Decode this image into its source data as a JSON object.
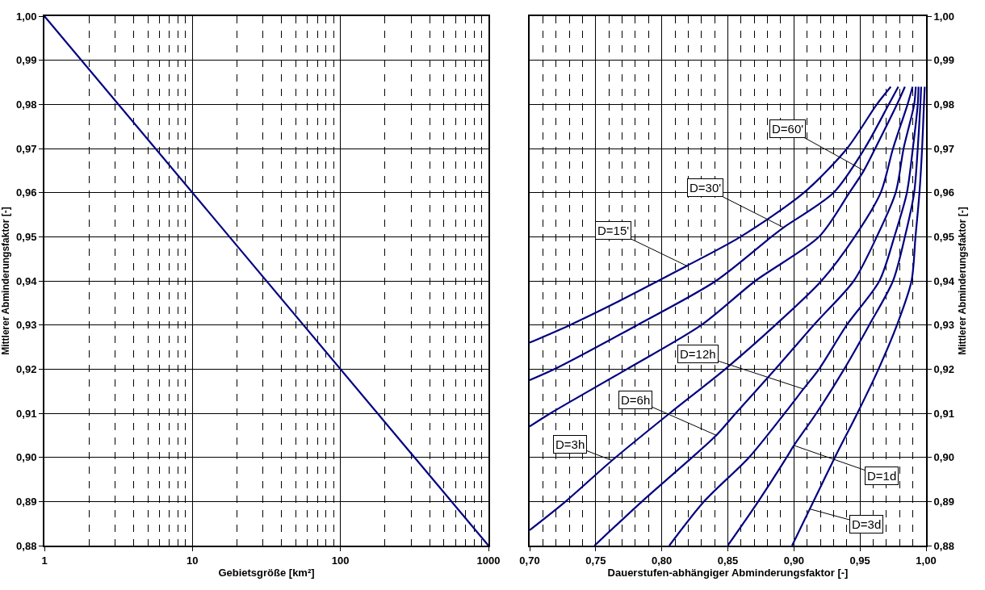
{
  "chart_data": [
    {
      "type": "line",
      "xlabel": "Gebietsgröße [km²]",
      "ylabel": "Mittlerer Abminderungsfaktor [-]",
      "log": "x",
      "grid": true,
      "color": "#000080",
      "x": [
        1,
        1000
      ],
      "values": [
        1.0,
        0.88
      ],
      "xlim": [
        1,
        1000
      ],
      "xticks": [
        {
          "value": 1,
          "label": "1"
        },
        {
          "value": 2,
          "label": null
        },
        {
          "value": 3,
          "label": null
        },
        {
          "value": 4,
          "label": null
        },
        {
          "value": 5,
          "label": null
        },
        {
          "value": 6,
          "label": null
        },
        {
          "value": 7,
          "label": null
        },
        {
          "value": 8,
          "label": null
        },
        {
          "value": 9,
          "label": null
        },
        {
          "value": 10,
          "label": "10"
        },
        {
          "value": 20,
          "label": null
        },
        {
          "value": 30,
          "label": null
        },
        {
          "value": 40,
          "label": null
        },
        {
          "value": 50,
          "label": null
        },
        {
          "value": 60,
          "label": null
        },
        {
          "value": 70,
          "label": null
        },
        {
          "value": 80,
          "label": null
        },
        {
          "value": 90,
          "label": null
        },
        {
          "value": 100,
          "label": "100"
        },
        {
          "value": 200,
          "label": null
        },
        {
          "value": 300,
          "label": null
        },
        {
          "value": 400,
          "label": null
        },
        {
          "value": 500,
          "label": null
        },
        {
          "value": 600,
          "label": null
        },
        {
          "value": 700,
          "label": null
        },
        {
          "value": 800,
          "label": null
        },
        {
          "value": 900,
          "label": null
        },
        {
          "value": 1000,
          "label": "1000"
        }
      ],
      "ylim": [
        0.88,
        1.0
      ],
      "yticks": [
        {
          "value": 0.88,
          "label": "0,88"
        },
        {
          "value": 0.89,
          "label": "0,89"
        },
        {
          "value": 0.9,
          "label": "0,90"
        },
        {
          "value": 0.91,
          "label": "0,91"
        },
        {
          "value": 0.92,
          "label": "0,92"
        },
        {
          "value": 0.93,
          "label": "0,93"
        },
        {
          "value": 0.94,
          "label": "0,94"
        },
        {
          "value": 0.95,
          "label": "0,95"
        },
        {
          "value": 0.96,
          "label": "0,96"
        },
        {
          "value": 0.97,
          "label": "0,97"
        },
        {
          "value": 0.98,
          "label": "0,98"
        },
        {
          "value": 0.99,
          "label": "0,99"
        },
        {
          "value": 1.0,
          "label": "1,00"
        }
      ]
    },
    {
      "type": "line",
      "xlabel": "Dauerstufen-abhängiger Abminderungsfaktor [-]",
      "ylabel": "Mittlerer Abminderungsfaktor [-]",
      "grid": true,
      "xlim": [
        0.7,
        1.0
      ],
      "xticks": [
        {
          "value": 0.7,
          "label": "0,70"
        },
        {
          "value": 0.71,
          "label": null
        },
        {
          "value": 0.72,
          "label": null
        },
        {
          "value": 0.73,
          "label": null
        },
        {
          "value": 0.74,
          "label": null
        },
        {
          "value": 0.75,
          "label": "0,75"
        },
        {
          "value": 0.76,
          "label": null
        },
        {
          "value": 0.77,
          "label": null
        },
        {
          "value": 0.78,
          "label": null
        },
        {
          "value": 0.79,
          "label": null
        },
        {
          "value": 0.8,
          "label": "0,80"
        },
        {
          "value": 0.81,
          "label": null
        },
        {
          "value": 0.82,
          "label": null
        },
        {
          "value": 0.83,
          "label": null
        },
        {
          "value": 0.84,
          "label": null
        },
        {
          "value": 0.85,
          "label": "0,85"
        },
        {
          "value": 0.86,
          "label": null
        },
        {
          "value": 0.87,
          "label": null
        },
        {
          "value": 0.88,
          "label": null
        },
        {
          "value": 0.89,
          "label": null
        },
        {
          "value": 0.9,
          "label": "0,90"
        },
        {
          "value": 0.91,
          "label": null
        },
        {
          "value": 0.92,
          "label": null
        },
        {
          "value": 0.93,
          "label": null
        },
        {
          "value": 0.94,
          "label": null
        },
        {
          "value": 0.95,
          "label": "0,95"
        },
        {
          "value": 0.96,
          "label": null
        },
        {
          "value": 0.97,
          "label": null
        },
        {
          "value": 0.98,
          "label": null
        },
        {
          "value": 0.99,
          "label": null
        },
        {
          "value": 1.0,
          "label": "1,00"
        }
      ],
      "ylim": [
        0.88,
        1.0
      ],
      "yticks": [
        {
          "value": 0.88,
          "label": "0,88"
        },
        {
          "value": 0.89,
          "label": "0,89"
        },
        {
          "value": 0.9,
          "label": "0,90"
        },
        {
          "value": 0.91,
          "label": "0,91"
        },
        {
          "value": 0.92,
          "label": "0,92"
        },
        {
          "value": 0.93,
          "label": "0,93"
        },
        {
          "value": 0.94,
          "label": "0,94"
        },
        {
          "value": 0.95,
          "label": "0,95"
        },
        {
          "value": 0.96,
          "label": "0,96"
        },
        {
          "value": 0.97,
          "label": "0,97"
        },
        {
          "value": 0.98,
          "label": "0,98"
        },
        {
          "value": 0.99,
          "label": "0,99"
        },
        {
          "value": 1.0,
          "label": "1,00"
        }
      ],
      "series": [
        {
          "color": "#000080",
          "x": [
            0.7,
            0.7306,
            0.765,
            0.7973,
            0.8189,
            0.8596,
            0.9076,
            0.9402,
            0.9627,
            0.9733
          ],
          "values": [
            0.926,
            0.93,
            0.935,
            0.94,
            0.9434,
            0.95,
            0.96,
            0.97,
            0.98,
            0.984
          ]
        },
        {
          "color": "#000080",
          "x": [
            0.7,
            0.7188,
            0.7815,
            0.841,
            0.883,
            0.8922,
            0.93,
            0.9535,
            0.9718,
            0.979
          ],
          "values": [
            0.9175,
            0.92,
            0.93,
            0.94,
            0.95,
            0.9521,
            0.96,
            0.97,
            0.98,
            0.984
          ]
        },
        {
          "color": "#000080",
          "x": [
            0.7,
            0.7158,
            0.7736,
            0.83,
            0.8708,
            0.919,
            0.942,
            0.9529,
            0.9615,
            0.978,
            0.984
          ],
          "values": [
            0.907,
            0.91,
            0.92,
            0.93,
            0.94,
            0.95,
            0.96,
            0.965,
            0.97,
            0.98,
            0.984
          ]
        },
        {
          "color": "#000080",
          "x": [
            0.7,
            0.7272,
            0.7623,
            0.806,
            0.848,
            0.886,
            0.9208,
            0.946,
            0.9657,
            0.975,
            0.986,
            0.9898
          ],
          "values": [
            0.8835,
            0.89,
            0.8993,
            0.91,
            0.92,
            0.93,
            0.94,
            0.95,
            0.96,
            0.97,
            0.98,
            0.984
          ]
        },
        {
          "color": "#000080",
          "x": [
            0.7491,
            0.785,
            0.823,
            0.8413,
            0.856,
            0.886,
            0.915,
            0.9453,
            0.9627,
            0.977,
            0.983,
            0.991,
            0.9922
          ],
          "values": [
            0.88,
            0.89,
            0.9,
            0.905,
            0.91,
            0.92,
            0.93,
            0.94,
            0.95,
            0.96,
            0.97,
            0.98,
            0.984
          ]
        },
        {
          "color": "#000080",
          "x": [
            0.8057,
            0.832,
            0.866,
            0.893,
            0.9072,
            0.919,
            0.94,
            0.9647,
            0.976,
            0.9855,
            0.99,
            0.9937,
            0.9943
          ],
          "values": [
            0.88,
            0.89,
            0.9,
            0.91,
            0.9155,
            0.92,
            0.93,
            0.94,
            0.95,
            0.96,
            0.97,
            0.98,
            0.984
          ]
        },
        {
          "color": "#000080",
          "x": [
            0.8499,
            0.873,
            0.8945,
            0.9,
            0.917,
            0.938,
            0.957,
            0.975,
            0.984,
            0.991,
            0.9937,
            0.9957,
            0.9963
          ],
          "values": [
            0.88,
            0.89,
            0.9,
            0.9027,
            0.91,
            0.92,
            0.93,
            0.94,
            0.95,
            0.96,
            0.97,
            0.98,
            0.984
          ]
        },
        {
          "color": "#000080",
          "x": [
            0.8986,
            0.912,
            0.9148,
            0.931,
            0.948,
            0.964,
            0.978,
            0.989,
            0.992,
            0.995,
            0.997,
            0.9984,
            0.999
          ],
          "values": [
            0.88,
            0.8883,
            0.89,
            0.9,
            0.91,
            0.92,
            0.93,
            0.94,
            0.95,
            0.96,
            0.97,
            0.98,
            0.984
          ]
        }
      ],
      "annotations": [
        {
          "text": "D=60'",
          "x": 0.9529,
          "y": 0.965
        },
        {
          "text": "D=30'",
          "x": 0.8922,
          "y": 0.9521
        },
        {
          "text": "D=15'",
          "x": 0.8189,
          "y": 0.9434
        },
        {
          "text": "D=12h",
          "x": 0.9072,
          "y": 0.9155
        },
        {
          "text": "D=6h",
          "x": 0.8413,
          "y": 0.905
        },
        {
          "text": "D=3h",
          "x": 0.7623,
          "y": 0.8993
        },
        {
          "text": "D=1d",
          "x": 0.9,
          "y": 0.9027
        },
        {
          "text": "D=3d",
          "x": 0.912,
          "y": 0.8883
        }
      ]
    }
  ]
}
